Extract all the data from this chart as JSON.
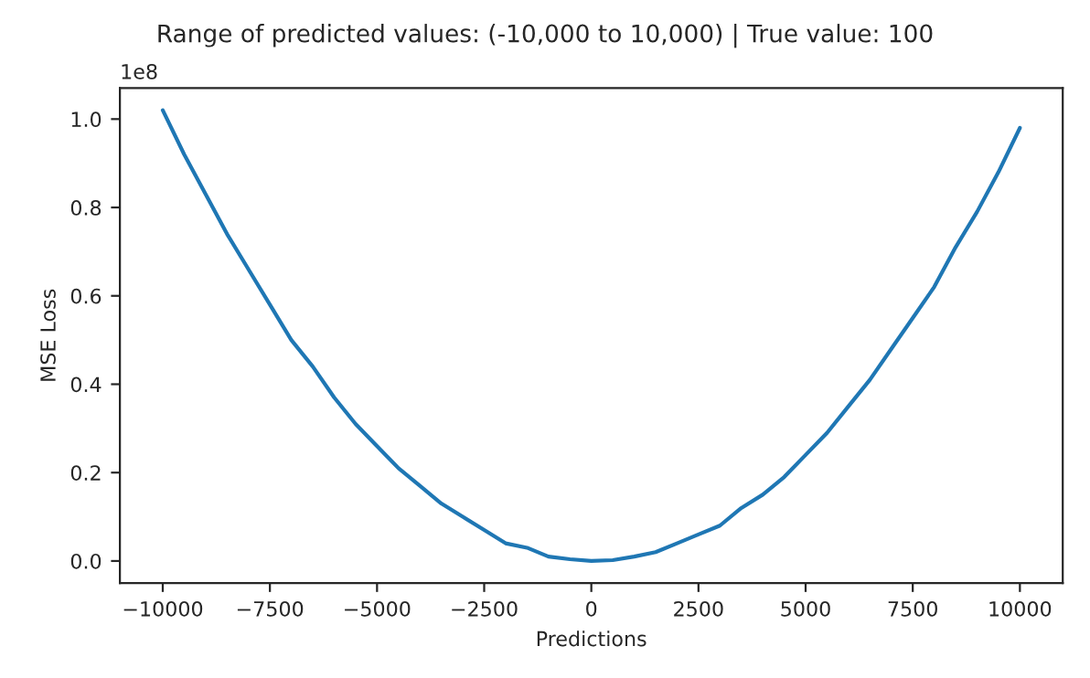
{
  "chart_data": {
    "type": "line",
    "title": "Range of predicted values: (-10,000 to 10,000) | True value: 100",
    "xlabel": "Predictions",
    "ylabel": "MSE Loss",
    "annotations": [
      "1e8"
    ],
    "x": [
      -10000,
      -9500,
      -9000,
      -8500,
      -8000,
      -7500,
      -7000,
      -6500,
      -6000,
      -5500,
      -5000,
      -4500,
      -4000,
      -3500,
      -3000,
      -2500,
      -2000,
      -1500,
      -1000,
      -500,
      0,
      500,
      1000,
      1500,
      2000,
      2500,
      3000,
      3500,
      4000,
      4500,
      5000,
      5500,
      6000,
      6500,
      7000,
      7500,
      8000,
      8500,
      9000,
      9500,
      10000
    ],
    "series": [
      {
        "color": "#1f77b4",
        "values": [
          1.02,
          0.92,
          0.83,
          0.74,
          0.66,
          0.58,
          0.5,
          0.44,
          0.37,
          0.31,
          0.26,
          0.21,
          0.17,
          0.13,
          0.1,
          0.07,
          0.04,
          0.03,
          0.01,
          0.004,
          0,
          0.002,
          0.01,
          0.02,
          0.04,
          0.06,
          0.08,
          0.12,
          0.15,
          0.19,
          0.24,
          0.29,
          0.35,
          0.41,
          0.48,
          0.55,
          0.62,
          0.71,
          0.79,
          0.88,
          0.98
        ]
      }
    ],
    "xlim": [
      -11000,
      11000
    ],
    "ylim": [
      -0.05,
      1.07
    ],
    "xticks": [
      {
        "value": -10000,
        "label": "−10000"
      },
      {
        "value": -7500,
        "label": "−7500"
      },
      {
        "value": -5000,
        "label": "−5000"
      },
      {
        "value": -2500,
        "label": "−2500"
      },
      0,
      2500,
      5000,
      7500,
      10000
    ],
    "yticks": [
      {
        "value": 0,
        "label": "0.0"
      },
      0.2,
      0.4,
      0.6,
      0.8,
      {
        "value": 1,
        "label": "1.0"
      }
    ],
    "grid": false
  }
}
